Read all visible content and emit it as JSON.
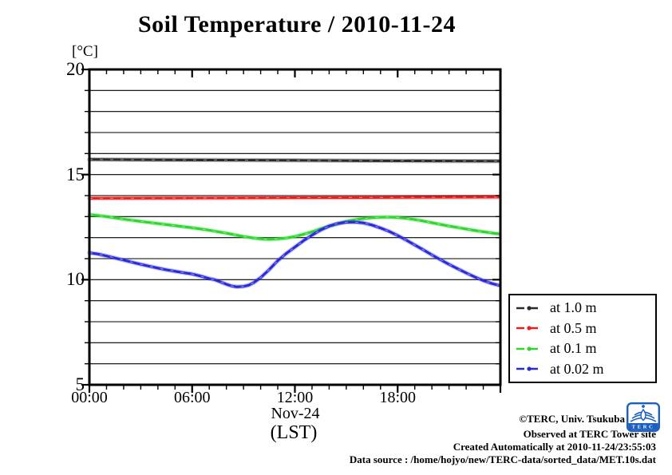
{
  "title": "Soil Temperature / 2010-11-24",
  "axes": {
    "y_unit": "[°C]",
    "y_min": 5,
    "y_max": 20,
    "y_major_ticks": [
      20,
      15,
      10,
      5
    ],
    "x_min_hour": 0,
    "x_max_hour": 24,
    "x_major_ticks": [
      {
        "label": "00:00",
        "hour": 0
      },
      {
        "label": "06:00",
        "hour": 6
      },
      {
        "label": "12:00",
        "hour": 12
      },
      {
        "label": "18:00",
        "hour": 18
      }
    ],
    "x_date_label": "Nov-24",
    "x_tz_label": "(LST)"
  },
  "footer": {
    "credit": "©TERC, Univ. Tsukuba",
    "observed": "Observed at TERC Tower site",
    "created": "Created Automatically at 2010-11-24/23:55:03",
    "source": "Data source : /home/hojyo/new/TERC-data/sorted_data/MET.10s.dat",
    "logo_text": "TERC",
    "logo_color": "#1d5fc0"
  },
  "chart_data": {
    "type": "line",
    "title": "Soil Temperature / 2010-11-24",
    "xlabel": "Nov-24 (LST)",
    "ylabel": "[°C]",
    "xlim": [
      0,
      24
    ],
    "ylim": [
      5,
      20
    ],
    "grid": "horizontal lines every 1 degree C",
    "legend_position": "outside right-bottom",
    "x_unit": "hour of day (LST)",
    "series": [
      {
        "name": "at 1.0 m",
        "color": "#2b2b2b",
        "speckle": "#9a9a9a",
        "points": [
          [
            0,
            15.72
          ],
          [
            4,
            15.7
          ],
          [
            8,
            15.69
          ],
          [
            12,
            15.68
          ],
          [
            16,
            15.66
          ],
          [
            20,
            15.65
          ],
          [
            23.9,
            15.64
          ]
        ]
      },
      {
        "name": "at 0.5 m",
        "color": "#ee1c1c",
        "speckle": "#ff8a8a",
        "points": [
          [
            0,
            13.87
          ],
          [
            4,
            13.88
          ],
          [
            8,
            13.89
          ],
          [
            12,
            13.9
          ],
          [
            16,
            13.91
          ],
          [
            20,
            13.92
          ],
          [
            23.9,
            13.93
          ]
        ]
      },
      {
        "name": "at 0.1 m",
        "color": "#2fd42f",
        "speckle": "#90ee90",
        "points": [
          [
            0,
            13.1
          ],
          [
            1,
            13.0
          ],
          [
            2,
            12.88
          ],
          [
            3,
            12.77
          ],
          [
            4,
            12.67
          ],
          [
            5,
            12.57
          ],
          [
            6,
            12.47
          ],
          [
            7,
            12.35
          ],
          [
            8,
            12.21
          ],
          [
            9,
            12.05
          ],
          [
            9.5,
            11.99
          ],
          [
            10,
            11.94
          ],
          [
            10.5,
            11.92
          ],
          [
            11,
            11.94
          ],
          [
            11.5,
            11.98
          ],
          [
            12,
            12.05
          ],
          [
            12.5,
            12.16
          ],
          [
            13,
            12.28
          ],
          [
            13.5,
            12.42
          ],
          [
            14,
            12.55
          ],
          [
            14.5,
            12.66
          ],
          [
            15,
            12.77
          ],
          [
            15.5,
            12.85
          ],
          [
            16,
            12.91
          ],
          [
            16.5,
            12.95
          ],
          [
            17,
            12.97
          ],
          [
            17.5,
            12.98
          ],
          [
            18,
            12.96
          ],
          [
            18.5,
            12.92
          ],
          [
            19,
            12.86
          ],
          [
            19.5,
            12.79
          ],
          [
            20,
            12.71
          ],
          [
            20.5,
            12.63
          ],
          [
            21,
            12.55
          ],
          [
            21.5,
            12.48
          ],
          [
            22,
            12.41
          ],
          [
            22.5,
            12.34
          ],
          [
            23,
            12.28
          ],
          [
            23.5,
            12.22
          ],
          [
            23.9,
            12.18
          ]
        ]
      },
      {
        "name": "at 0.02 m",
        "color": "#2a2ad8",
        "speckle": "#9a9aff",
        "points": [
          [
            0,
            11.28
          ],
          [
            0.5,
            11.22
          ],
          [
            1,
            11.13
          ],
          [
            1.5,
            11.03
          ],
          [
            2,
            10.93
          ],
          [
            2.5,
            10.83
          ],
          [
            3,
            10.73
          ],
          [
            3.5,
            10.64
          ],
          [
            4,
            10.55
          ],
          [
            4.5,
            10.47
          ],
          [
            5,
            10.4
          ],
          [
            5.5,
            10.33
          ],
          [
            6,
            10.27
          ],
          [
            6.5,
            10.17
          ],
          [
            7,
            10.05
          ],
          [
            7.3,
            10.0
          ],
          [
            7.6,
            9.91
          ],
          [
            8,
            9.78
          ],
          [
            8.3,
            9.7
          ],
          [
            8.6,
            9.66
          ],
          [
            9,
            9.68
          ],
          [
            9.3,
            9.74
          ],
          [
            9.6,
            9.86
          ],
          [
            10,
            10.1
          ],
          [
            10.5,
            10.48
          ],
          [
            11,
            10.9
          ],
          [
            11.5,
            11.25
          ],
          [
            12,
            11.55
          ],
          [
            12.5,
            11.85
          ],
          [
            13,
            12.12
          ],
          [
            13.5,
            12.36
          ],
          [
            14,
            12.55
          ],
          [
            14.5,
            12.67
          ],
          [
            15,
            12.73
          ],
          [
            15.5,
            12.74
          ],
          [
            16,
            12.7
          ],
          [
            16.5,
            12.6
          ],
          [
            17,
            12.46
          ],
          [
            17.5,
            12.3
          ],
          [
            18,
            12.1
          ],
          [
            18.5,
            11.88
          ],
          [
            19,
            11.65
          ],
          [
            19.5,
            11.42
          ],
          [
            20,
            11.18
          ],
          [
            20.5,
            10.95
          ],
          [
            21,
            10.73
          ],
          [
            21.5,
            10.52
          ],
          [
            22,
            10.32
          ],
          [
            22.5,
            10.13
          ],
          [
            23,
            9.96
          ],
          [
            23.5,
            9.82
          ],
          [
            23.9,
            9.73
          ]
        ]
      }
    ]
  }
}
